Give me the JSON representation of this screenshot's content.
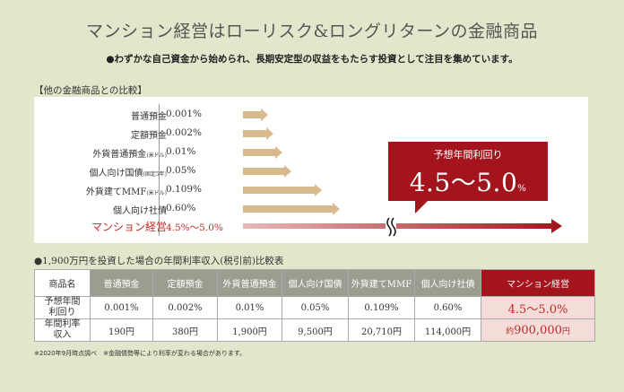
{
  "title": "マンション経営はローリスク&ロングリターンの金融商品",
  "subtitle": "●わずかな自己資金から始められ、長期安定型の収益をもたらす投資として注目を集めています。",
  "comparison": {
    "label": "【他の金融商品との比較】",
    "rows": [
      {
        "name": "普通預金",
        "note": "",
        "rate": "0.001%"
      },
      {
        "name": "定額預金",
        "note": "",
        "rate": "0.002%"
      },
      {
        "name": "外貨普通預金",
        "note": "(米ドル)",
        "rate": "0.01%"
      },
      {
        "name": "個人向け国債",
        "note": "(固定5年)",
        "rate": "0.05%"
      },
      {
        "name": "外貨建てMMF",
        "note": "(米ドル)",
        "rate": "0.109%"
      },
      {
        "name": "個人向け社債",
        "note": "",
        "rate": "0.60%"
      },
      {
        "name": "マンション経営",
        "note": "",
        "rate": "4.5%〜5.0%"
      }
    ],
    "callout": {
      "label": "予想年間利回り",
      "value": "4.5〜5.0",
      "unit": "%"
    },
    "colors": {
      "arrow": "#d9b98e",
      "accent": "#a3141c"
    }
  },
  "table": {
    "label": "●1,900万円を投資した場合の年間利率収入(税引前)比較表",
    "headers": [
      "商品名",
      "普通預金",
      "定額預金",
      "外貨普通預金",
      "個人向け国債",
      "外貨建てMMF",
      "個人向け社債",
      "マンション経営"
    ],
    "rows": [
      {
        "label_line1": "予想年間",
        "label_line2": "利回り",
        "values": [
          "0.001%",
          "0.002%",
          "0.01%",
          "0.05%",
          "0.109%",
          "0.60%"
        ],
        "highlight": "4.5〜5.0%",
        "highlight_prefix": ""
      },
      {
        "label_line1": "年間利率",
        "label_line2": "収入",
        "values": [
          "190円",
          "380円",
          "1,900円",
          "9,500円",
          "20,710円",
          "114,000円"
        ],
        "highlight": "900,000",
        "highlight_prefix": "約",
        "highlight_suffix": "円"
      }
    ]
  },
  "footnote": "※2020年9月時点調べ　※金融情勢等により利率が変わる場合があります。"
}
